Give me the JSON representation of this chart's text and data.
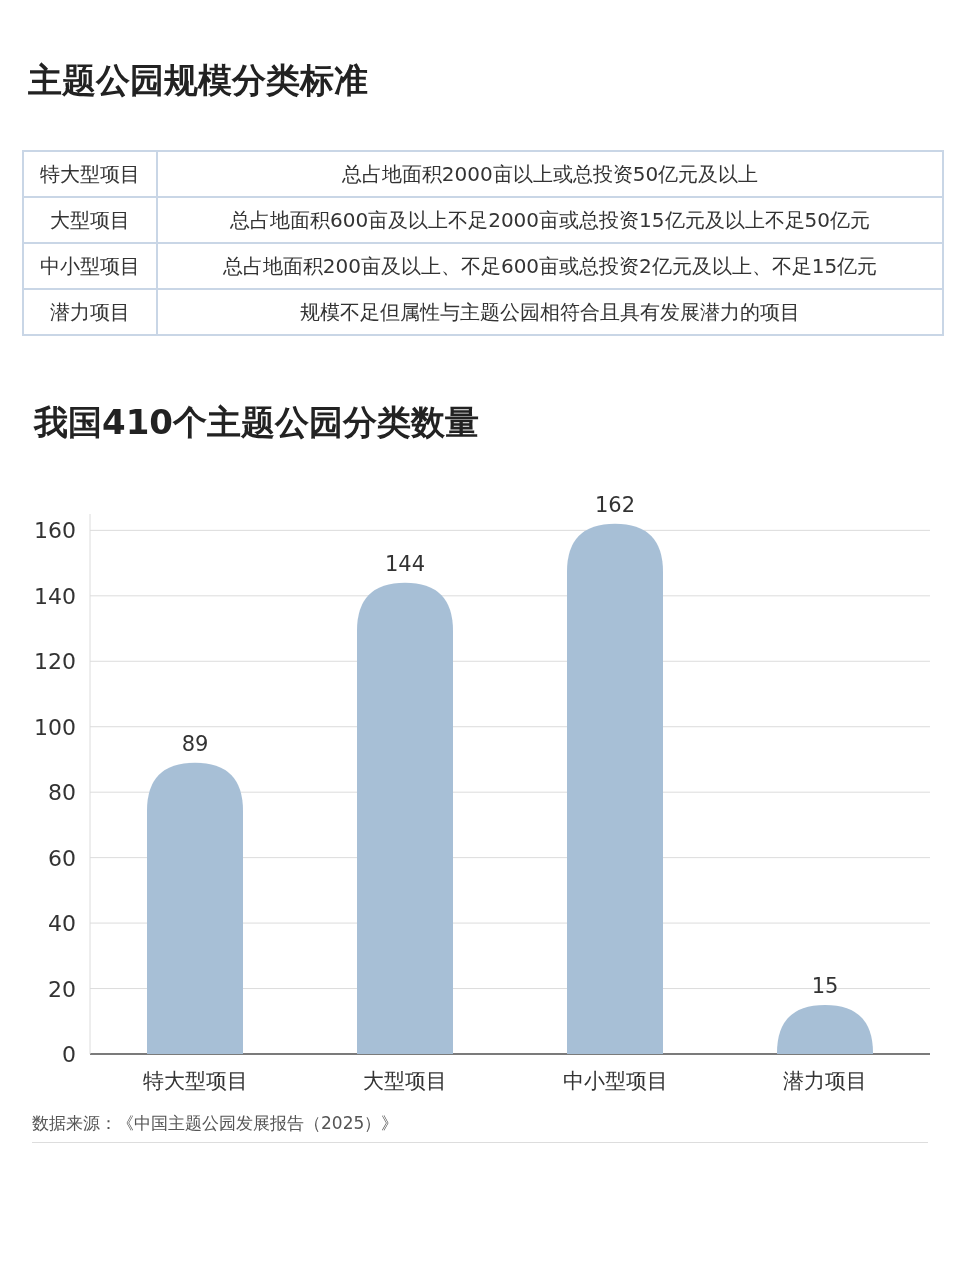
{
  "chart_data": [
    {
      "type": "other",
      "title": "主题公园规模分类标准",
      "annotations": [
        "特大型项目",
        "总占地面积2000亩以上或总投资50亿元及以上",
        "大型项目",
        "总占地面积600亩及以上不足2000亩或总投资15亿元及以上不足50亿元",
        "中小型项目",
        "总占地面积200亩及以上、不足600亩或总投资2亿元及以上、不足15亿元",
        "潜力项目",
        "规模不足但属性与主题公园相符合且具有发展潜力的项目"
      ]
    },
    {
      "type": "bar",
      "title": "我国410个主题公园分类数量",
      "categories": [
        "特大型项目",
        "大型项目",
        "中小型项目",
        "潜力项目"
      ],
      "values": [
        89,
        144,
        162,
        15
      ],
      "color": "#a7bfd6",
      "ylim": [
        0,
        165
      ],
      "yticks": [
        0,
        20,
        40,
        60,
        80,
        100,
        120,
        140,
        160
      ],
      "grid": "y",
      "data_labels": true,
      "annotations": [
        "数据来源：《中国主题公园发展报告（2025）》"
      ]
    }
  ]
}
